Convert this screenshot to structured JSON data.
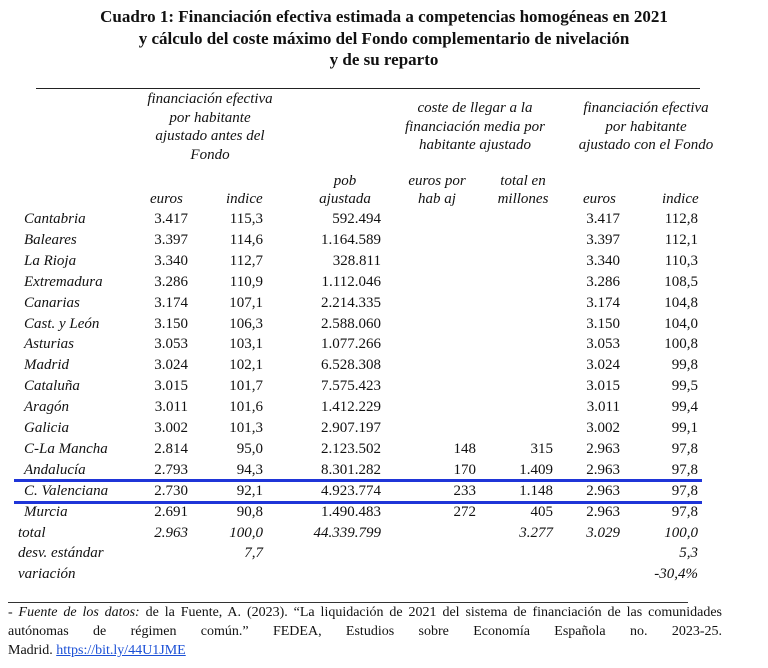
{
  "title": [
    "Cuadro 1: Financiación efectiva estimada a competencias homogéneas en 2021",
    "y cálculo del coste máximo del Fondo complementario de nivelación",
    "y de su reparto"
  ],
  "groups": {
    "before": [
      "financiación efectiva",
      "por habitante",
      "ajustado antes del",
      "Fondo"
    ],
    "cost": [
      "coste de llegar a la",
      "financiación media por",
      "habitante ajustado"
    ],
    "after": [
      "financiación efectiva",
      "por habitante",
      "ajustado con el Fondo"
    ]
  },
  "columns": {
    "euros1": "euros",
    "indice1": "indice",
    "pob": [
      "pob",
      "ajustada"
    ],
    "euros_hab": [
      "euros por",
      "hab aj"
    ],
    "total_mill": [
      "total en",
      "millones"
    ],
    "euros2": "euros",
    "indice2": "indice"
  },
  "rows": [
    {
      "region": "Cantabria",
      "euros1": "3.417",
      "indice1": "115,3",
      "pob": "592.494",
      "euros_hab": "",
      "total_mill": "",
      "euros2": "3.417",
      "indice2": "112,8"
    },
    {
      "region": "Baleares",
      "euros1": "3.397",
      "indice1": "114,6",
      "pob": "1.164.589",
      "euros_hab": "",
      "total_mill": "",
      "euros2": "3.397",
      "indice2": "112,1"
    },
    {
      "region": "La Rioja",
      "euros1": "3.340",
      "indice1": "112,7",
      "pob": "328.811",
      "euros_hab": "",
      "total_mill": "",
      "euros2": "3.340",
      "indice2": "110,3"
    },
    {
      "region": "Extremadura",
      "euros1": "3.286",
      "indice1": "110,9",
      "pob": "1.112.046",
      "euros_hab": "",
      "total_mill": "",
      "euros2": "3.286",
      "indice2": "108,5"
    },
    {
      "region": "Canarias",
      "euros1": "3.174",
      "indice1": "107,1",
      "pob": "2.214.335",
      "euros_hab": "",
      "total_mill": "",
      "euros2": "3.174",
      "indice2": "104,8"
    },
    {
      "region": "Cast. y León",
      "euros1": "3.150",
      "indice1": "106,3",
      "pob": "2.588.060",
      "euros_hab": "",
      "total_mill": "",
      "euros2": "3.150",
      "indice2": "104,0"
    },
    {
      "region": "Asturias",
      "euros1": "3.053",
      "indice1": "103,1",
      "pob": "1.077.266",
      "euros_hab": "",
      "total_mill": "",
      "euros2": "3.053",
      "indice2": "100,8"
    },
    {
      "region": "Madrid",
      "euros1": "3.024",
      "indice1": "102,1",
      "pob": "6.528.308",
      "euros_hab": "",
      "total_mill": "",
      "euros2": "3.024",
      "indice2": "99,8"
    },
    {
      "region": "Cataluña",
      "euros1": "3.015",
      "indice1": "101,7",
      "pob": "7.575.423",
      "euros_hab": "",
      "total_mill": "",
      "euros2": "3.015",
      "indice2": "99,5"
    },
    {
      "region": "Aragón",
      "euros1": "3.011",
      "indice1": "101,6",
      "pob": "1.412.229",
      "euros_hab": "",
      "total_mill": "",
      "euros2": "3.011",
      "indice2": "99,4"
    },
    {
      "region": "Galicia",
      "euros1": "3.002",
      "indice1": "101,3",
      "pob": "2.907.197",
      "euros_hab": "",
      "total_mill": "",
      "euros2": "3.002",
      "indice2": "99,1"
    },
    {
      "region": "C-La Mancha",
      "euros1": "2.814",
      "indice1": "95,0",
      "pob": "2.123.502",
      "euros_hab": "148",
      "total_mill": "315",
      "euros2": "2.963",
      "indice2": "97,8"
    },
    {
      "region": "Andalucía",
      "euros1": "2.793",
      "indice1": "94,3",
      "pob": "8.301.282",
      "euros_hab": "170",
      "total_mill": "1.409",
      "euros2": "2.963",
      "indice2": "97,8"
    },
    {
      "region": "C. Valenciana",
      "euros1": "2.730",
      "indice1": "92,1",
      "pob": "4.923.774",
      "euros_hab": "233",
      "total_mill": "1.148",
      "euros2": "2.963",
      "indice2": "97,8",
      "highlight": true
    },
    {
      "region": "Murcia",
      "euros1": "2.691",
      "indice1": "90,8",
      "pob": "1.490.483",
      "euros_hab": "272",
      "total_mill": "405",
      "euros2": "2.963",
      "indice2": "97,8"
    }
  ],
  "summary": [
    {
      "label": "total",
      "euros1": "2.963",
      "indice1": "100,0",
      "pob": "44.339.799",
      "euros_hab": "",
      "total_mill": "3.277",
      "euros2": "3.029",
      "indice2": "100,0"
    },
    {
      "label": "desv. estándar",
      "euros1": "",
      "indice1": "7,7",
      "pob": "",
      "euros_hab": "",
      "total_mill": "",
      "euros2": "",
      "indice2": "5,3"
    },
    {
      "label": "variación",
      "euros1": "",
      "indice1": "",
      "pob": "",
      "euros_hab": "",
      "total_mill": "",
      "euros2": "",
      "indice2": "-30,4%"
    }
  ],
  "colors": {
    "highlight_line": "#1f35d8",
    "link": "#1a4fd6"
  },
  "footnote": {
    "source_label": "- Fuente de los datos:",
    "line1": " de la Fuente, A. (2023). “La liquidación de 2021 del sistema de financiación de las comunidades",
    "line2": "autónomas de régimen común.” FEDEA, Estudios sobre Economía Española no. 2023-25.",
    "line3": "Madrid.",
    "link": "https://bit.ly/44U1JME"
  }
}
